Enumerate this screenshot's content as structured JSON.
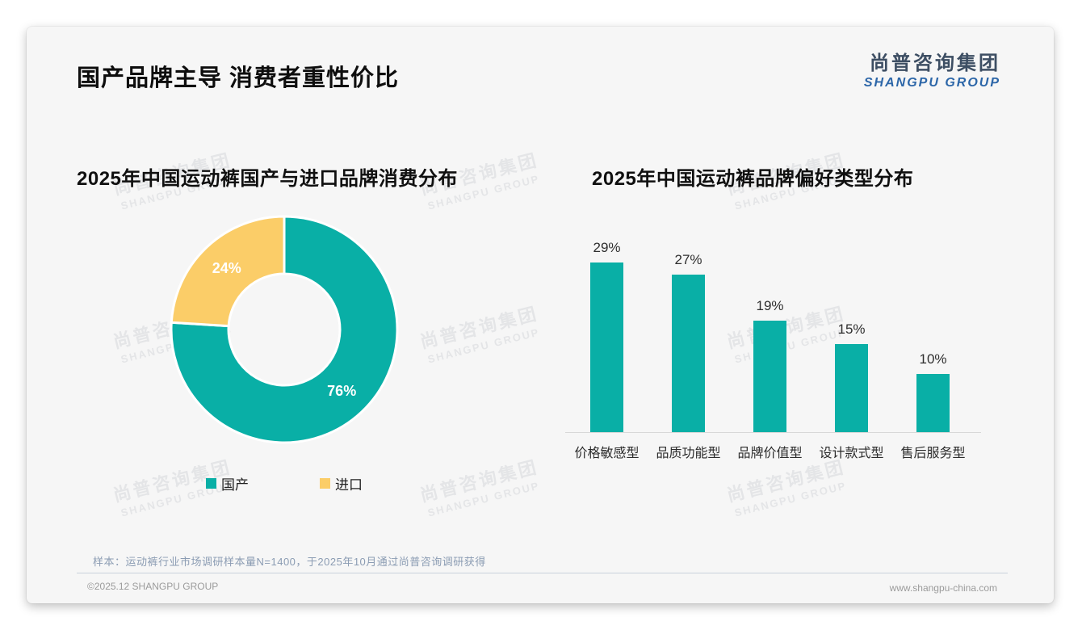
{
  "page": {
    "title": "国产品牌主导 消费者重性价比",
    "logo": {
      "cn": "尚普咨询集团",
      "en": "SHANGPU GROUP"
    },
    "watermark": {
      "cn": "尚普咨询集团",
      "en": "SHANGPU GROUP"
    },
    "footer": {
      "sample_note": "样本：运动裤行业市场调研样本量N=1400，于2025年10月通过尚普咨询调研获得",
      "copyright": "©2025.12 SHANGPU GROUP",
      "website": "www.shangpu-china.com"
    }
  },
  "colors": {
    "teal": "#09AFA6",
    "yellow": "#FBCD68",
    "logo_blue": "#2c66a8",
    "axis_gray": "#d8d8d8"
  },
  "chart_data": [
    {
      "type": "pie",
      "donut": true,
      "title": "2025年中国运动裤国产与进口品牌消费分布",
      "labels": [
        "国产",
        "进口"
      ],
      "values": [
        76,
        24
      ],
      "value_labels": [
        "76%",
        "24%"
      ],
      "colors": [
        "#09AFA6",
        "#FBCD68"
      ],
      "start_angle_deg": 0,
      "direction": "clockwise",
      "legend_position": "bottom"
    },
    {
      "type": "bar",
      "title": "2025年中国运动裤品牌偏好类型分布",
      "categories": [
        "价格敏感型",
        "品质功能型",
        "品牌价值型",
        "设计款式型",
        "售后服务型"
      ],
      "values": [
        29,
        27,
        19,
        15,
        10
      ],
      "value_labels": [
        "29%",
        "27%",
        "19%",
        "15%",
        "10%"
      ],
      "bar_color": "#09AFA6",
      "xlabel": "",
      "ylabel": "",
      "ylim": [
        0,
        32
      ],
      "grid": false,
      "legend_position": "none"
    }
  ]
}
